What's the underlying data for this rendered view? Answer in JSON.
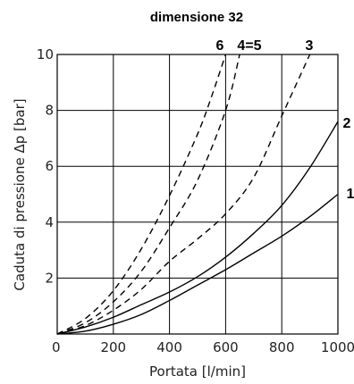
{
  "chart_data": {
    "type": "line",
    "title": "dimensione 32",
    "xlabel": "Portata [l/min]",
    "ylabel": "Caduta di pressione Δp [bar]",
    "xlim": [
      0,
      1000
    ],
    "ylim": [
      0,
      10
    ],
    "grid": true,
    "x_ticks": [
      "0",
      "200",
      "400",
      "600",
      "800",
      "1000"
    ],
    "y_ticks": [
      "0",
      "2",
      "4",
      "6",
      "8",
      "10"
    ],
    "series": [
      {
        "name": "1",
        "style": "solid",
        "x": [
          0,
          100,
          200,
          300,
          400,
          500,
          600,
          700,
          800,
          900,
          1000
        ],
        "y": [
          0,
          0.1,
          0.35,
          0.7,
          1.2,
          1.75,
          2.3,
          2.9,
          3.5,
          4.2,
          5.0
        ]
      },
      {
        "name": "2",
        "style": "solid",
        "x": [
          0,
          100,
          200,
          300,
          400,
          500,
          600,
          700,
          800,
          900,
          1000
        ],
        "y": [
          0,
          0.25,
          0.6,
          1.05,
          1.5,
          2.05,
          2.75,
          3.6,
          4.6,
          5.95,
          7.6
        ]
      },
      {
        "name": "3",
        "style": "dashed",
        "x": [
          0,
          100,
          200,
          300,
          400,
          500,
          600,
          700,
          800,
          900
        ],
        "y": [
          0,
          0.3,
          0.85,
          1.6,
          2.6,
          3.4,
          4.3,
          5.6,
          7.8,
          10.0
        ]
      },
      {
        "name": "4=5",
        "style": "dashed",
        "x": [
          0,
          100,
          200,
          300,
          400,
          500,
          600,
          650
        ],
        "y": [
          0,
          0.4,
          1.15,
          2.25,
          3.8,
          5.5,
          8.0,
          10.0
        ]
      },
      {
        "name": "6",
        "style": "dashed",
        "x": [
          0,
          100,
          200,
          300,
          400,
          500,
          550,
          600
        ],
        "y": [
          0,
          0.55,
          1.55,
          3.05,
          4.95,
          7.15,
          8.5,
          10.0
        ]
      }
    ]
  }
}
